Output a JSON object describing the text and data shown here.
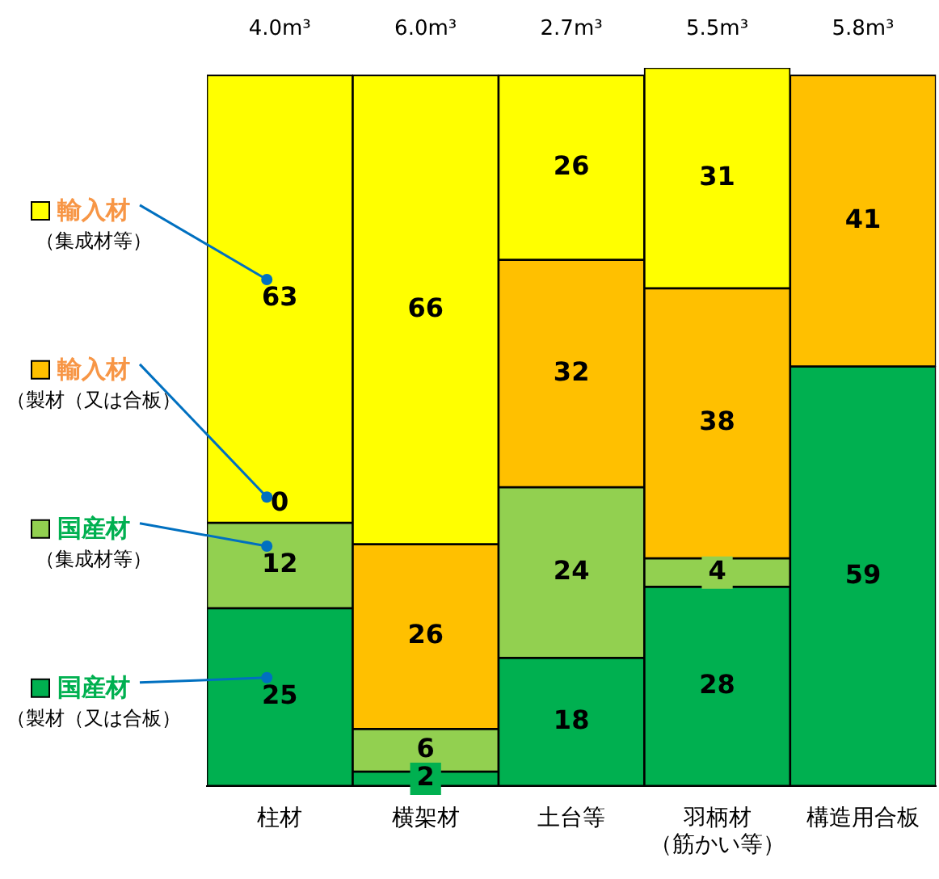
{
  "chart_data": {
    "type": "bar",
    "stacked": true,
    "categories": [
      "柱材",
      "横架材",
      "土台等",
      "羽柄材（筋かい等）",
      "構造用合板"
    ],
    "series": [
      {
        "name": "国産材（製材（又は合板）",
        "color": "#00b050",
        "values": [
          25,
          2,
          18,
          28,
          59
        ]
      },
      {
        "name": "国産材（集成材等）",
        "color": "#92d050",
        "values": [
          12,
          6,
          24,
          4,
          null
        ]
      },
      {
        "name": "輸入材（製材（又は合板）",
        "color": "#ffc000",
        "values": [
          0,
          26,
          32,
          38,
          41
        ]
      },
      {
        "name": "輸入材（集成材等）",
        "color": "#ffff00",
        "values": [
          63,
          66,
          26,
          31,
          null
        ]
      }
    ],
    "ylim": [
      0,
      101
    ],
    "tick_labels": "x",
    "grid": false,
    "legend": "left",
    "data_labels": true,
    "annotations": [
      "4.0m³",
      "6.0m³",
      "2.7m³",
      "5.5m³",
      "5.8m³"
    ]
  }
}
